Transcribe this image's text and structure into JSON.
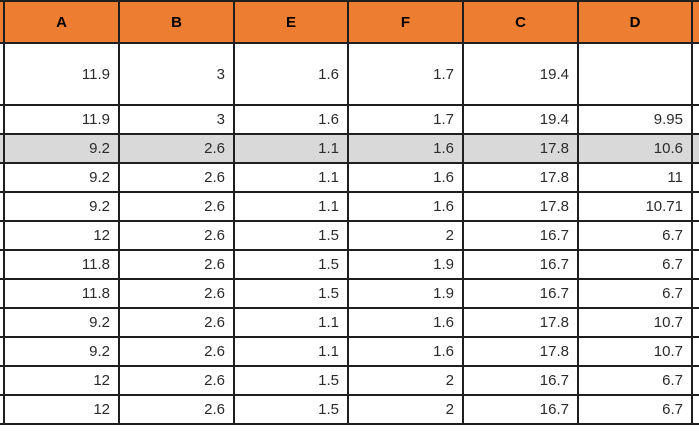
{
  "table": {
    "columns": [
      "A",
      "B",
      "E",
      "F",
      "C",
      "D"
    ],
    "rows": [
      {
        "tall": true,
        "highlighted": false,
        "values": [
          "11.9",
          "3",
          "1.6",
          "1.7",
          "19.4",
          ""
        ]
      },
      {
        "tall": false,
        "highlighted": false,
        "values": [
          "11.9",
          "3",
          "1.6",
          "1.7",
          "19.4",
          "9.95"
        ]
      },
      {
        "tall": false,
        "highlighted": true,
        "values": [
          "9.2",
          "2.6",
          "1.1",
          "1.6",
          "17.8",
          "10.6"
        ]
      },
      {
        "tall": false,
        "highlighted": false,
        "values": [
          "9.2",
          "2.6",
          "1.1",
          "1.6",
          "17.8",
          "11"
        ]
      },
      {
        "tall": false,
        "highlighted": false,
        "values": [
          "9.2",
          "2.6",
          "1.1",
          "1.6",
          "17.8",
          "10.71"
        ]
      },
      {
        "tall": false,
        "highlighted": false,
        "values": [
          "12",
          "2.6",
          "1.5",
          "2",
          "16.7",
          "6.7"
        ]
      },
      {
        "tall": false,
        "highlighted": false,
        "values": [
          "11.8",
          "2.6",
          "1.5",
          "1.9",
          "16.7",
          "6.7"
        ]
      },
      {
        "tall": false,
        "highlighted": false,
        "values": [
          "11.8",
          "2.6",
          "1.5",
          "1.9",
          "16.7",
          "6.7"
        ]
      },
      {
        "tall": false,
        "highlighted": false,
        "values": [
          "9.2",
          "2.6",
          "1.1",
          "1.6",
          "17.8",
          "10.7"
        ]
      },
      {
        "tall": false,
        "highlighted": false,
        "values": [
          "9.2",
          "2.6",
          "1.1",
          "1.6",
          "17.8",
          "10.7"
        ]
      },
      {
        "tall": false,
        "highlighted": false,
        "values": [
          "12",
          "2.6",
          "1.5",
          "2",
          "16.7",
          "6.7"
        ]
      },
      {
        "tall": false,
        "highlighted": false,
        "values": [
          "12",
          "2.6",
          "1.5",
          "2",
          "16.7",
          "6.7"
        ]
      }
    ],
    "colors": {
      "header_bg": "#ED7D31",
      "highlight_bg": "#D9D9D9",
      "border": "#1F1F1F",
      "header_text": "#000000",
      "cell_text": "#2B2B2B"
    }
  }
}
